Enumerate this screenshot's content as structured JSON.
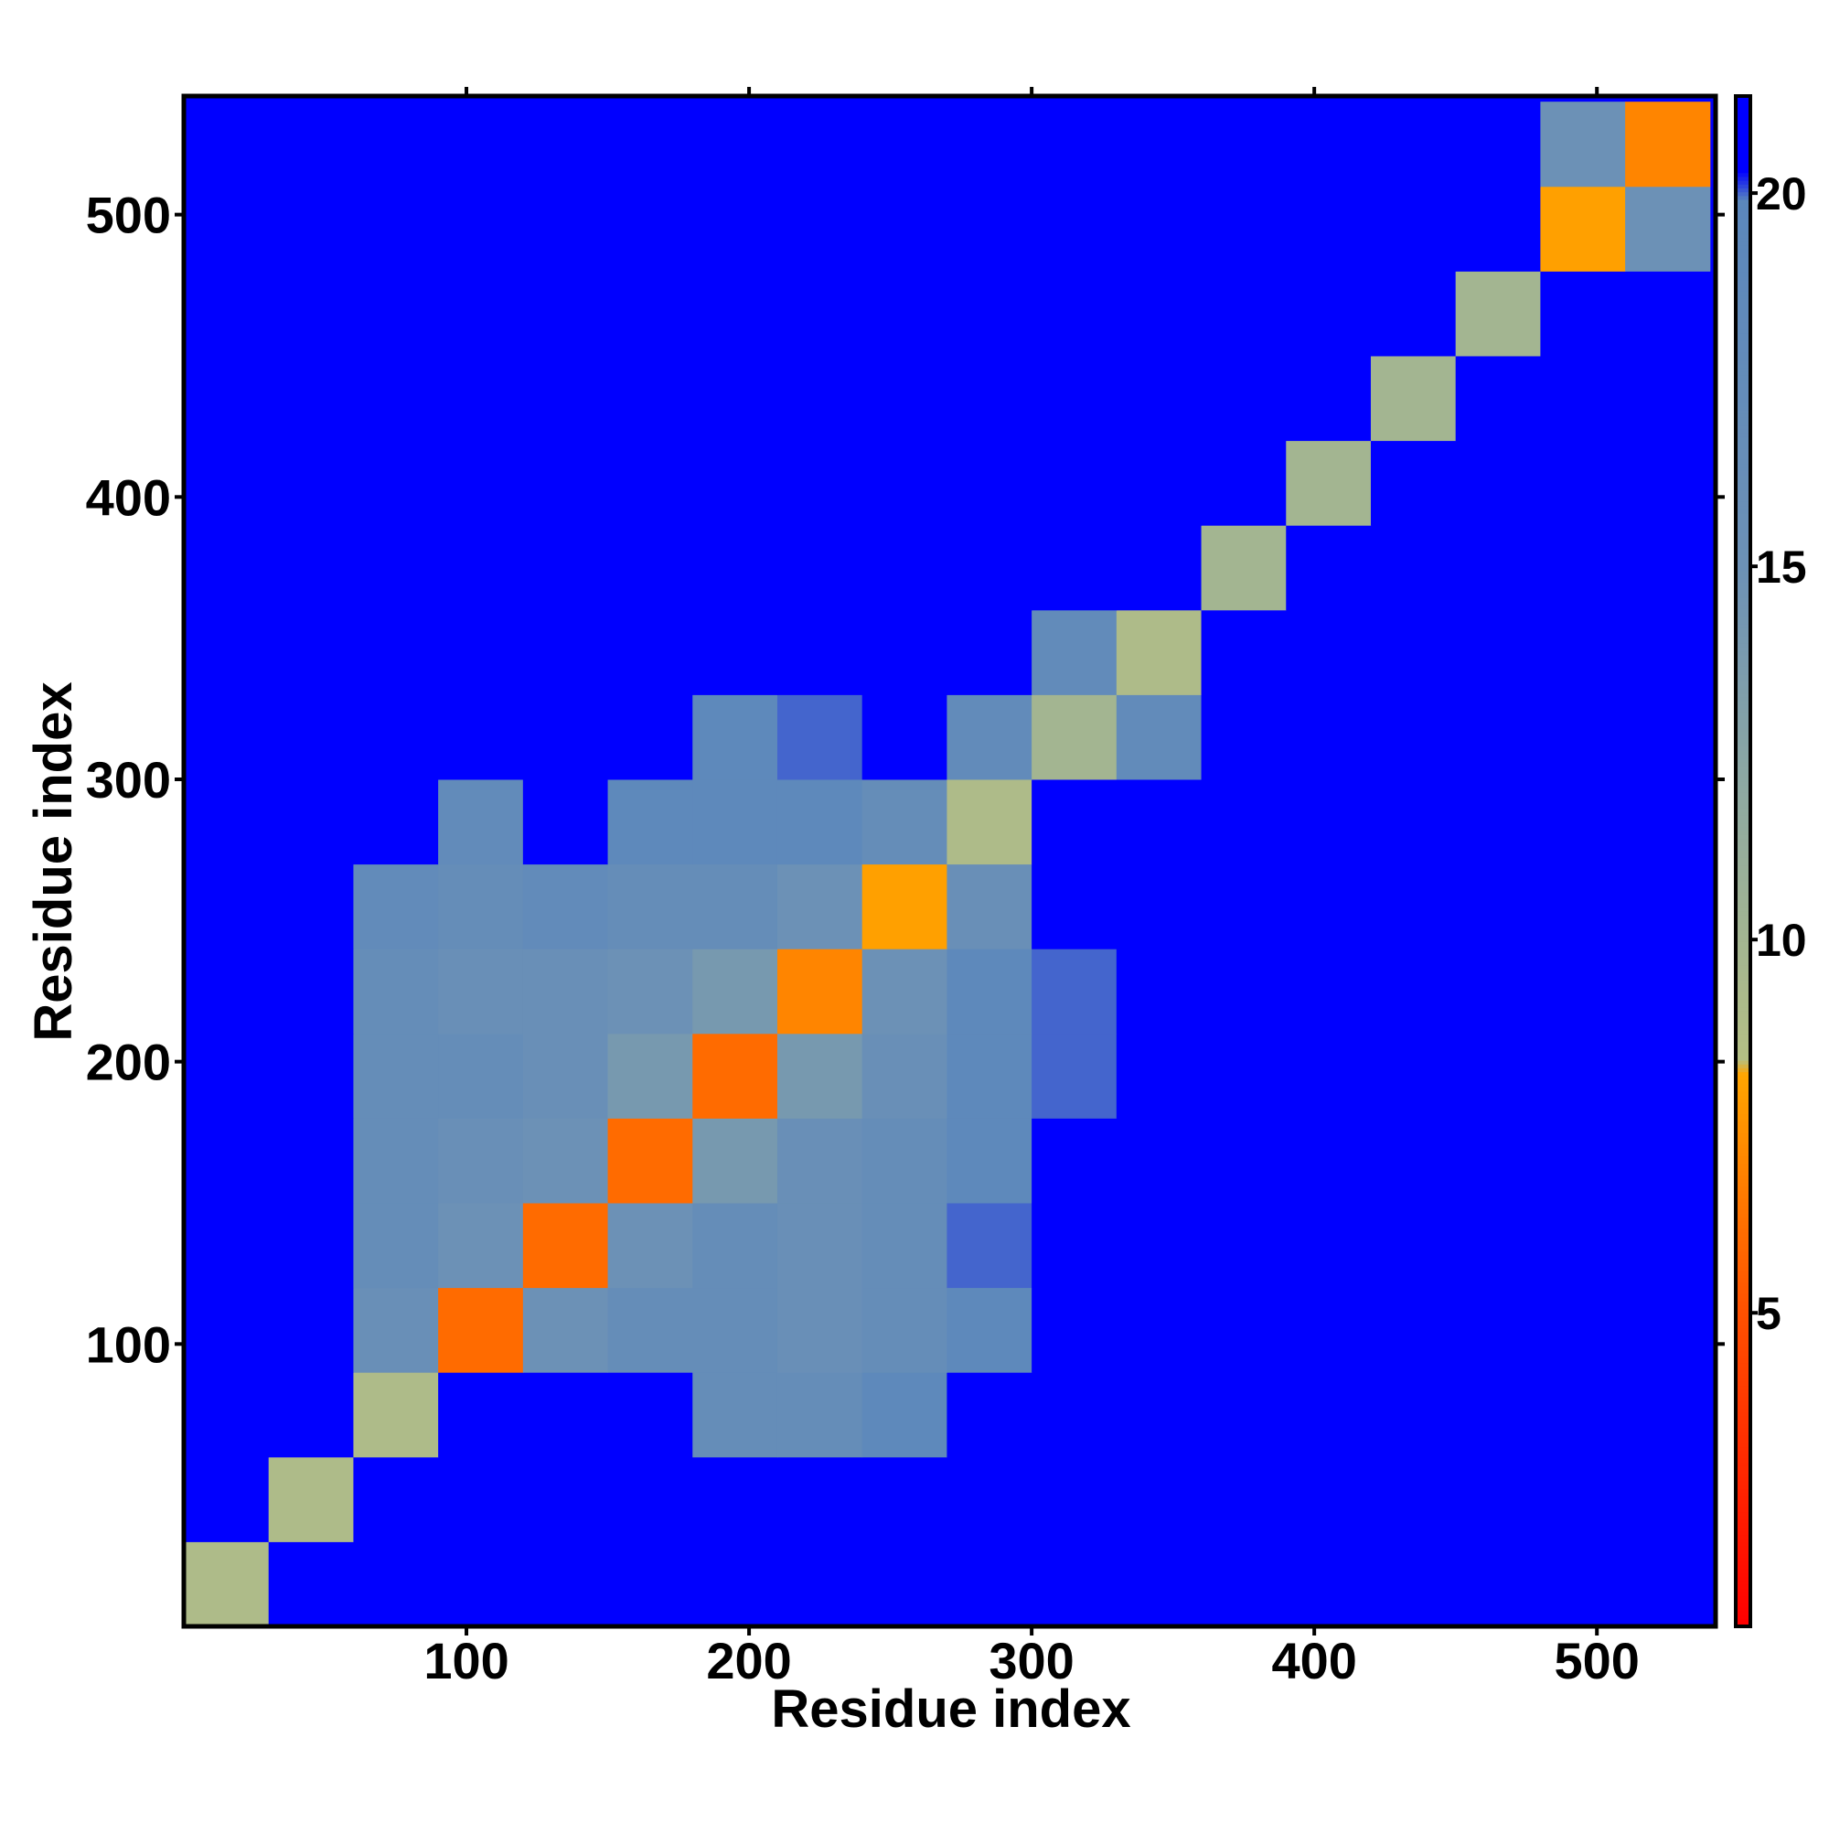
{
  "chart_data": {
    "type": "heatmap",
    "xlabel": "Residue index",
    "ylabel": "Residue index",
    "xlim": [
      0,
      542
    ],
    "ylim": [
      0,
      542
    ],
    "xticks": [
      100,
      200,
      300,
      400,
      500
    ],
    "yticks": [
      100,
      200,
      300,
      400,
      500
    ],
    "xbins": [
      0,
      30,
      60,
      90,
      120,
      150,
      180,
      210,
      240,
      270,
      300,
      330,
      360,
      390,
      420,
      450,
      480,
      510,
      540
    ],
    "ybins": [
      0,
      30,
      60,
      90,
      120,
      150,
      180,
      210,
      240,
      270,
      300,
      330,
      360,
      390,
      420,
      450,
      480,
      510,
      540
    ],
    "z": [
      [
        9,
        21,
        21,
        21,
        21,
        21,
        21,
        21,
        21,
        21,
        21,
        21,
        21,
        21,
        21,
        21,
        21,
        21
      ],
      [
        21,
        9,
        21,
        21,
        21,
        21,
        21,
        21,
        21,
        21,
        21,
        21,
        21,
        21,
        21,
        21,
        21,
        21
      ],
      [
        21,
        21,
        9,
        21,
        21,
        21,
        17,
        17,
        19,
        21,
        21,
        21,
        21,
        21,
        21,
        21,
        21,
        21
      ],
      [
        21,
        21,
        16,
        6,
        15,
        17,
        17,
        16,
        17,
        19,
        21,
        21,
        21,
        21,
        21,
        21,
        21,
        21
      ],
      [
        21,
        21,
        17,
        15,
        6,
        15,
        17,
        16,
        17,
        20,
        21,
        21,
        21,
        21,
        21,
        21,
        21,
        21
      ],
      [
        21,
        21,
        17,
        16,
        15,
        6,
        14,
        16,
        17,
        19,
        21,
        21,
        21,
        21,
        21,
        21,
        21,
        21
      ],
      [
        21,
        21,
        17,
        17,
        16,
        14,
        6,
        14,
        16,
        19,
        20,
        21,
        21,
        21,
        21,
        21,
        21,
        21
      ],
      [
        21,
        21,
        17,
        16,
        16,
        15,
        14,
        7,
        15,
        19,
        20,
        21,
        21,
        21,
        21,
        21,
        21,
        21
      ],
      [
        21,
        21,
        18,
        17,
        18,
        17,
        17,
        15,
        8,
        16,
        21,
        21,
        21,
        21,
        21,
        21,
        21,
        21
      ],
      [
        21,
        21,
        21,
        18,
        21,
        19,
        19,
        19,
        17,
        9,
        21,
        21,
        21,
        21,
        21,
        21,
        21,
        21
      ],
      [
        21,
        21,
        21,
        21,
        21,
        21,
        19,
        20,
        21,
        18,
        10,
        18,
        21,
        21,
        21,
        21,
        21,
        21
      ],
      [
        21,
        21,
        21,
        21,
        21,
        21,
        21,
        21,
        21,
        21,
        18,
        9,
        21,
        21,
        21,
        21,
        21,
        21
      ],
      [
        21,
        21,
        21,
        21,
        21,
        21,
        21,
        21,
        21,
        21,
        21,
        21,
        10,
        21,
        21,
        21,
        21,
        21
      ],
      [
        21,
        21,
        21,
        21,
        21,
        21,
        21,
        21,
        21,
        21,
        21,
        21,
        21,
        10,
        21,
        21,
        21,
        21
      ],
      [
        21,
        21,
        21,
        21,
        21,
        21,
        21,
        21,
        21,
        21,
        21,
        21,
        21,
        21,
        10,
        21,
        21,
        21
      ],
      [
        21,
        21,
        21,
        21,
        21,
        21,
        21,
        21,
        21,
        21,
        21,
        21,
        21,
        21,
        21,
        10,
        21,
        21
      ],
      [
        21,
        21,
        21,
        21,
        21,
        21,
        21,
        21,
        21,
        21,
        21,
        21,
        21,
        21,
        21,
        21,
        8,
        15
      ],
      [
        21,
        21,
        21,
        21,
        21,
        21,
        21,
        21,
        21,
        21,
        21,
        21,
        21,
        21,
        21,
        21,
        15,
        7
      ]
    ],
    "zlim": [
      0.8,
      21.3
    ],
    "zticks": [
      5,
      10,
      15,
      20
    ],
    "colorscale": [
      [
        0.8,
        "#ff0000"
      ],
      [
        5,
        "#ff5000"
      ],
      [
        8.2,
        "#ffa500"
      ],
      [
        8.4,
        "#b4bf84"
      ],
      [
        12,
        "#8ea9a2"
      ],
      [
        15,
        "#6c91b6"
      ],
      [
        19.9,
        "#5b87bc"
      ],
      [
        20.3,
        "#0000ff"
      ],
      [
        21.3,
        "#0000ff"
      ]
    ]
  }
}
